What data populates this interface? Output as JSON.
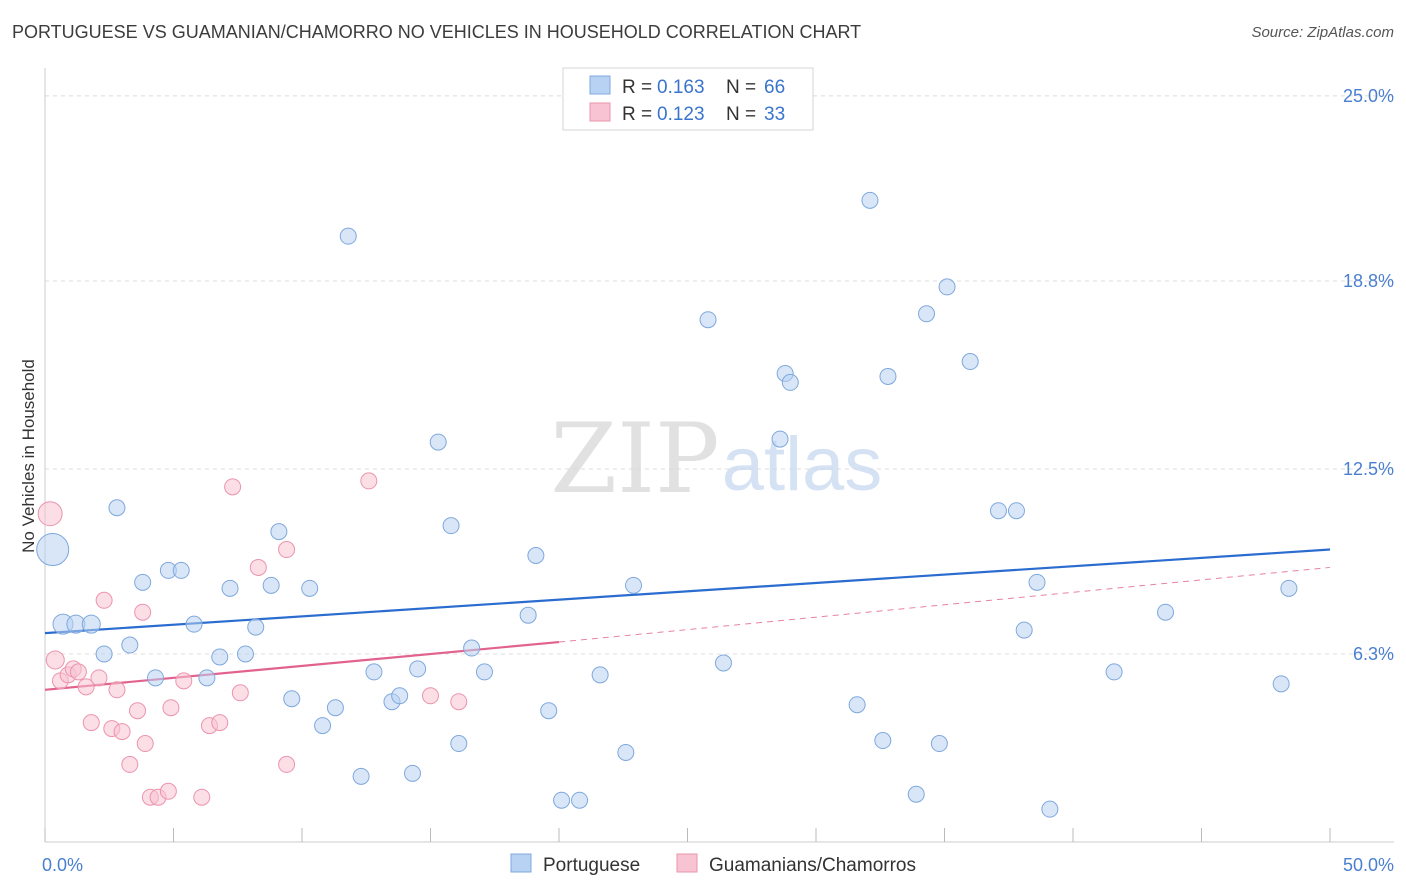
{
  "title": "PORTUGUESE VS GUAMANIAN/CHAMORRO NO VEHICLES IN HOUSEHOLD CORRELATION CHART",
  "source": "Source: ZipAtlas.com",
  "watermark": {
    "zip": "ZIP",
    "atlas": "atlas"
  },
  "colors": {
    "blue_fill": "#b8d2f3",
    "blue_stroke": "#7fa8dc",
    "blue_line": "#2a6ccf",
    "pink_fill": "#f8c3d2",
    "pink_stroke": "#eb94ae",
    "pink_line": "#e2628f",
    "grid": "#dcdcdc",
    "axis_text": "#4a7fd0"
  },
  "legend": {
    "r_label": "R =",
    "n_label": "N =",
    "portuguese": {
      "r": "0.163",
      "n": "66"
    },
    "guamanian": {
      "r": "0.123",
      "n": "33"
    }
  },
  "chart_data": {
    "type": "scatter",
    "title": "PORTUGUESE VS GUAMANIAN/CHAMORRO NO VEHICLES IN HOUSEHOLD CORRELATION CHART",
    "xlabel": "",
    "ylabel": "No Vehicles in Household",
    "xlim": [
      0,
      50
    ],
    "ylim": [
      0,
      25.6
    ],
    "x_tick_labels": [
      "0.0%",
      "50.0%"
    ],
    "y_tick_values": [
      6.3,
      12.5,
      18.8,
      25.0
    ],
    "y_tick_labels": [
      "6.3%",
      "12.5%",
      "18.8%",
      "25.0%"
    ],
    "series": [
      {
        "name": "Portuguese",
        "color": "#b8d2f3",
        "trend": {
          "x0": 0,
          "y0": 7.0,
          "x1": 50,
          "y1": 9.8
        },
        "points": [
          [
            0.3,
            9.8,
            16
          ],
          [
            0.7,
            7.3,
            10
          ],
          [
            1.2,
            7.3,
            9
          ],
          [
            1.8,
            7.3,
            9
          ],
          [
            2.3,
            6.3,
            8
          ],
          [
            2.8,
            11.2,
            8
          ],
          [
            3.3,
            6.6,
            8
          ],
          [
            3.8,
            8.7,
            8
          ],
          [
            4.3,
            5.5,
            8
          ],
          [
            4.8,
            9.1,
            8
          ],
          [
            5.3,
            9.1,
            8
          ],
          [
            5.8,
            7.3,
            8
          ],
          [
            6.3,
            5.5,
            8
          ],
          [
            6.8,
            6.2,
            8
          ],
          [
            7.2,
            8.5,
            8
          ],
          [
            7.8,
            6.3,
            8
          ],
          [
            8.2,
            7.2,
            8
          ],
          [
            8.8,
            8.6,
            8
          ],
          [
            9.1,
            10.4,
            8
          ],
          [
            9.6,
            4.8,
            8
          ],
          [
            10.3,
            8.5,
            8
          ],
          [
            10.8,
            3.9,
            8
          ],
          [
            11.3,
            4.5,
            8
          ],
          [
            11.8,
            20.3,
            8
          ],
          [
            12.3,
            2.2,
            8
          ],
          [
            12.8,
            5.7,
            8
          ],
          [
            13.5,
            4.7,
            8
          ],
          [
            13.8,
            4.9,
            8
          ],
          [
            14.3,
            2.3,
            8
          ],
          [
            14.5,
            5.8,
            8
          ],
          [
            15.3,
            13.4,
            8
          ],
          [
            15.8,
            10.6,
            8
          ],
          [
            16.1,
            3.3,
            8
          ],
          [
            16.6,
            6.5,
            8
          ],
          [
            17.1,
            5.7,
            8
          ],
          [
            18.8,
            7.6,
            8
          ],
          [
            19.1,
            9.6,
            8
          ],
          [
            19.6,
            4.4,
            8
          ],
          [
            20.1,
            1.4,
            8
          ],
          [
            20.8,
            1.4,
            8
          ],
          [
            21.6,
            5.6,
            8
          ],
          [
            22.6,
            3.0,
            8
          ],
          [
            22.9,
            8.6,
            8
          ],
          [
            25.8,
            17.5,
            8
          ],
          [
            26.4,
            6.0,
            8
          ],
          [
            28.6,
            13.5,
            8
          ],
          [
            28.8,
            15.7,
            8
          ],
          [
            29.0,
            15.4,
            8
          ],
          [
            31.6,
            4.6,
            8
          ],
          [
            32.1,
            21.5,
            8
          ],
          [
            32.6,
            3.4,
            8
          ],
          [
            32.8,
            15.6,
            8
          ],
          [
            33.9,
            1.6,
            8
          ],
          [
            34.3,
            17.7,
            8
          ],
          [
            34.8,
            3.3,
            8
          ],
          [
            35.1,
            18.6,
            8
          ],
          [
            36.0,
            16.1,
            8
          ],
          [
            37.1,
            11.1,
            8
          ],
          [
            37.8,
            11.1,
            8
          ],
          [
            38.1,
            7.1,
            8
          ],
          [
            38.6,
            8.7,
            8
          ],
          [
            39.1,
            1.1,
            8
          ],
          [
            41.6,
            5.7,
            8
          ],
          [
            43.6,
            7.7,
            8
          ],
          [
            48.1,
            5.3,
            8
          ],
          [
            48.4,
            8.5,
            8
          ]
        ]
      },
      {
        "name": "Guamanians/Chamorros",
        "color": "#f8c3d2",
        "trend": {
          "x0": 0,
          "y0": 5.1,
          "x1": 20,
          "y1": 6.7
        },
        "trend_dashed": {
          "x0": 20,
          "y0": 6.7,
          "x1": 50,
          "y1": 9.2
        },
        "points": [
          [
            0.2,
            11.0,
            12
          ],
          [
            0.4,
            6.1,
            9
          ],
          [
            0.6,
            5.4,
            8
          ],
          [
            0.9,
            5.6,
            8
          ],
          [
            1.1,
            5.8,
            8
          ],
          [
            1.3,
            5.7,
            8
          ],
          [
            1.6,
            5.2,
            8
          ],
          [
            1.8,
            4.0,
            8
          ],
          [
            2.1,
            5.5,
            8
          ],
          [
            2.3,
            8.1,
            8
          ],
          [
            2.6,
            3.8,
            8
          ],
          [
            2.8,
            5.1,
            8
          ],
          [
            3.0,
            3.7,
            8
          ],
          [
            3.3,
            2.6,
            8
          ],
          [
            3.6,
            4.4,
            8
          ],
          [
            3.8,
            7.7,
            8
          ],
          [
            3.9,
            3.3,
            8
          ],
          [
            4.1,
            1.5,
            8
          ],
          [
            4.4,
            1.5,
            8
          ],
          [
            4.8,
            1.7,
            8
          ],
          [
            4.9,
            4.5,
            8
          ],
          [
            5.4,
            5.4,
            8
          ],
          [
            6.1,
            1.5,
            8
          ],
          [
            6.4,
            3.9,
            8
          ],
          [
            6.8,
            4.0,
            8
          ],
          [
            7.3,
            11.9,
            8
          ],
          [
            7.6,
            5.0,
            8
          ],
          [
            8.3,
            9.2,
            8
          ],
          [
            9.4,
            9.8,
            8
          ],
          [
            9.4,
            2.6,
            8
          ],
          [
            12.6,
            12.1,
            8
          ],
          [
            15.0,
            4.9,
            8
          ],
          [
            16.1,
            4.7,
            8
          ]
        ]
      }
    ],
    "legend_bottom": [
      "Portuguese",
      "Guamanians/Chamorros"
    ]
  }
}
